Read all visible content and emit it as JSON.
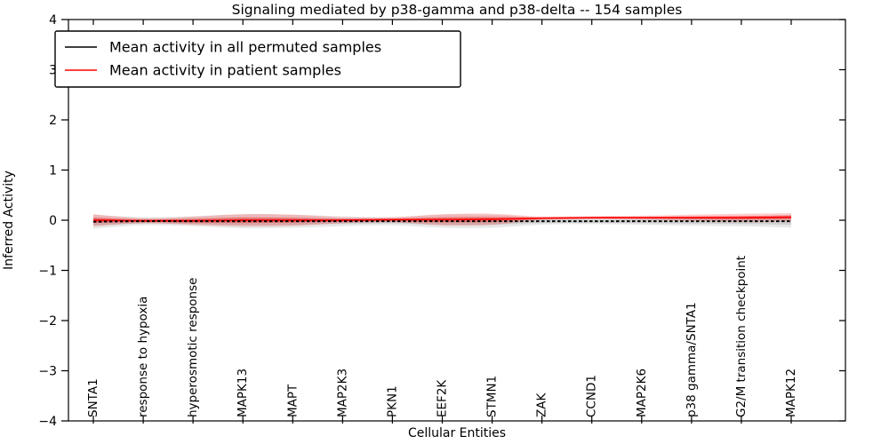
{
  "title": "Signaling mediated by p38-gamma and p38-delta -- 154 samples",
  "legend": {
    "items": [
      {
        "label": "Mean activity in all permuted samples",
        "color": "#000000"
      },
      {
        "label": "Mean activity in patient samples",
        "color": "#ff0000"
      }
    ]
  },
  "axes": {
    "xlabel": "Cellular Entities",
    "ylabel": "Inferred Activity",
    "ylim": [
      -4,
      4
    ],
    "yticks": [
      4,
      3,
      2,
      1,
      0,
      -1,
      -2,
      -3,
      -4
    ]
  },
  "chart_data": {
    "type": "area",
    "title": "Signaling mediated by p38-gamma and p38-delta -- 154 samples",
    "xlabel": "Cellular Entities",
    "ylabel": "Inferred Activity",
    "ylim": [
      -4,
      4
    ],
    "grid": false,
    "legend_position": "upper left",
    "categories": [
      "SNTA1",
      "response to hypoxia",
      "hyperosmotic response",
      "MAPK13",
      "MAPT",
      "MAP2K3",
      "PKN1",
      "EEF2K",
      "STMN1",
      "ZAK",
      "CCND1",
      "MAP2K6",
      "p38 gamma/SNTA1",
      "G2/M transition checkpoint",
      "MAPK12"
    ],
    "series": [
      {
        "name": "Mean activity in all permuted samples",
        "color": "#000000",
        "line_style": "dashed",
        "values": [
          -0.03,
          -0.02,
          -0.02,
          -0.02,
          -0.02,
          -0.02,
          -0.02,
          -0.02,
          -0.02,
          -0.02,
          -0.02,
          -0.02,
          -0.02,
          -0.02,
          -0.02
        ]
      },
      {
        "name": "Mean activity in patient samples",
        "color": "#ff0000",
        "line_style": "solid",
        "values": [
          0.0,
          -0.01,
          -0.01,
          0.0,
          0.0,
          0.0,
          0.01,
          0.01,
          0.02,
          0.04,
          0.05,
          0.05,
          0.05,
          0.05,
          0.06
        ]
      }
    ],
    "bands": [
      {
        "name": "permuted samples activity spread",
        "center": "permuted",
        "color": "#000000",
        "half_widths": [
          0.14,
          0.08,
          0.1,
          0.14,
          0.13,
          0.1,
          0.08,
          0.13,
          0.13,
          0.07,
          0.06,
          0.07,
          0.09,
          0.1,
          0.13
        ]
      },
      {
        "name": "patient samples activity spread",
        "center": "patient",
        "color": "#ff0000",
        "half_widths": [
          0.12,
          0.05,
          0.08,
          0.12,
          0.11,
          0.06,
          0.05,
          0.11,
          0.11,
          0.035,
          0.03,
          0.04,
          0.06,
          0.08,
          0.08
        ]
      }
    ]
  }
}
